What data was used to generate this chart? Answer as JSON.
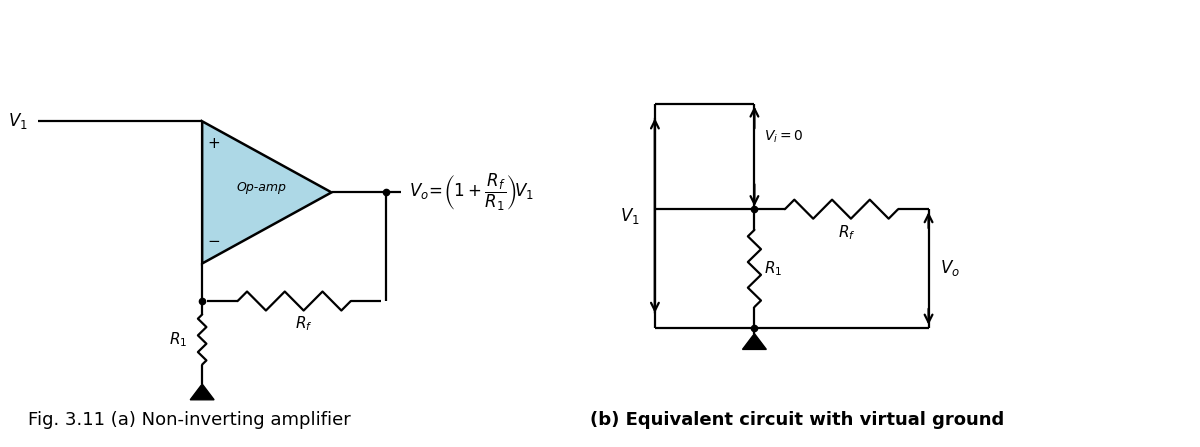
{
  "bg_color": "#ffffff",
  "text_color": "#000000",
  "line_color": "#000000",
  "opamp_fill": "#add8e6",
  "opamp_stroke": "#000000",
  "fig_caption_left": "Fig. 3.11 (a) Non-inverting amplifier",
  "fig_caption_right": "(b) Equivalent circuit with virtual ground",
  "caption_fontsize": 13,
  "label_fontsize": 12
}
